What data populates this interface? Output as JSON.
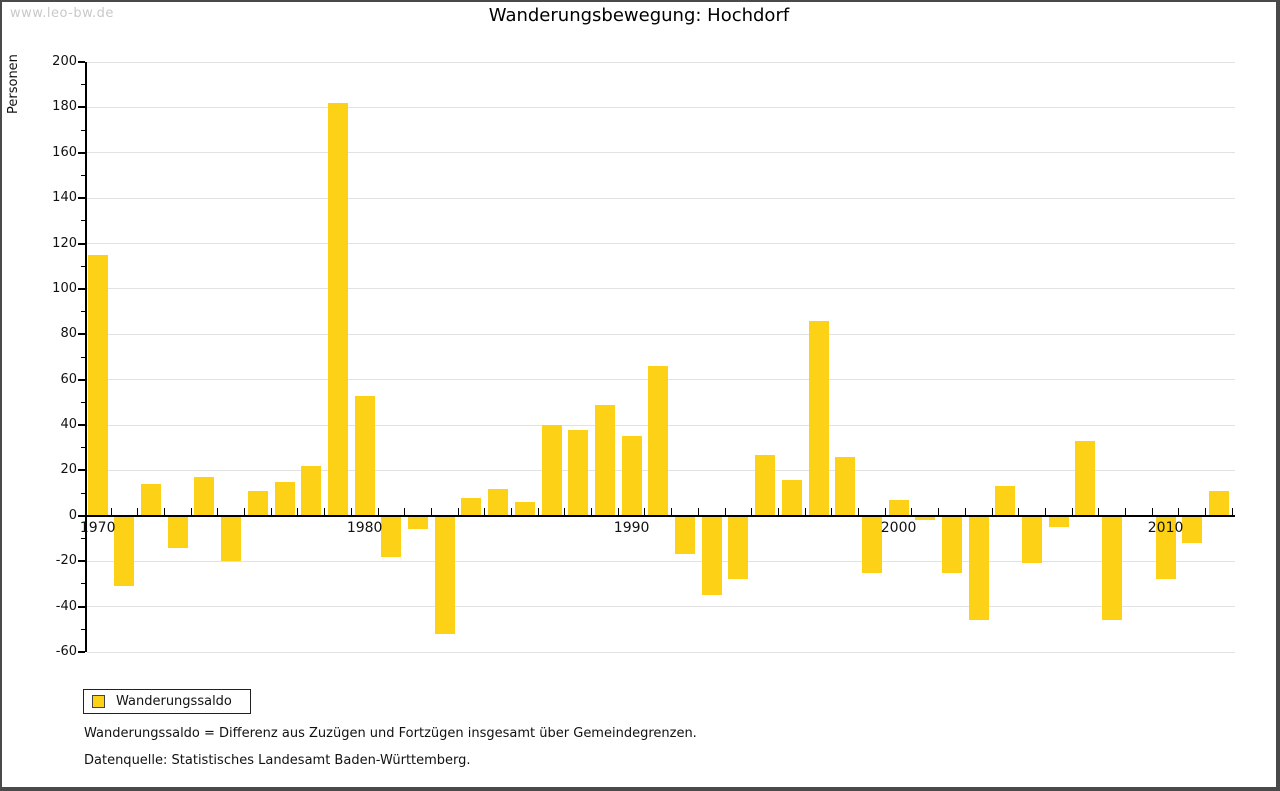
{
  "watermark": "www.leo-bw.de",
  "footnotes": {
    "definition": "Wanderungssaldo = Differenz aus Zuzügen und Fortzügen insgesamt über Gemeindegrenzen.",
    "source": "Datenquelle: Statistisches Landesamt Baden-Württemberg."
  },
  "chart_data": {
    "type": "bar",
    "title": "Wanderungsbewegung: Hochdorf",
    "ylabel": "Personen",
    "legend": "Wanderungssaldo",
    "legend_position": "bottom-left",
    "grid": true,
    "ylim": [
      -60,
      200
    ],
    "y_tick_step": 20,
    "y_minor_tick_step": 10,
    "x_decade_labels": [
      1970,
      1980,
      1990,
      2000,
      2010
    ],
    "bar_color": "#FCD116",
    "categories": [
      1970,
      1971,
      1972,
      1973,
      1974,
      1975,
      1976,
      1977,
      1978,
      1979,
      1980,
      1981,
      1982,
      1983,
      1984,
      1985,
      1986,
      1987,
      1988,
      1989,
      1990,
      1991,
      1992,
      1993,
      1994,
      1995,
      1996,
      1997,
      1998,
      1999,
      2000,
      2001,
      2002,
      2003,
      2004,
      2005,
      2006,
      2007,
      2008,
      2009,
      2010,
      2011,
      2012
    ],
    "values": [
      115,
      -31,
      14,
      -14,
      17,
      -20,
      11,
      15,
      22,
      182,
      53,
      -18,
      -6,
      -52,
      8,
      12,
      6,
      40,
      38,
      49,
      35,
      66,
      -17,
      -35,
      -28,
      27,
      16,
      86,
      26,
      -25,
      7,
      -2,
      -25,
      -46,
      13,
      -21,
      -5,
      33,
      -46,
      0,
      -28,
      -12,
      11
    ]
  }
}
